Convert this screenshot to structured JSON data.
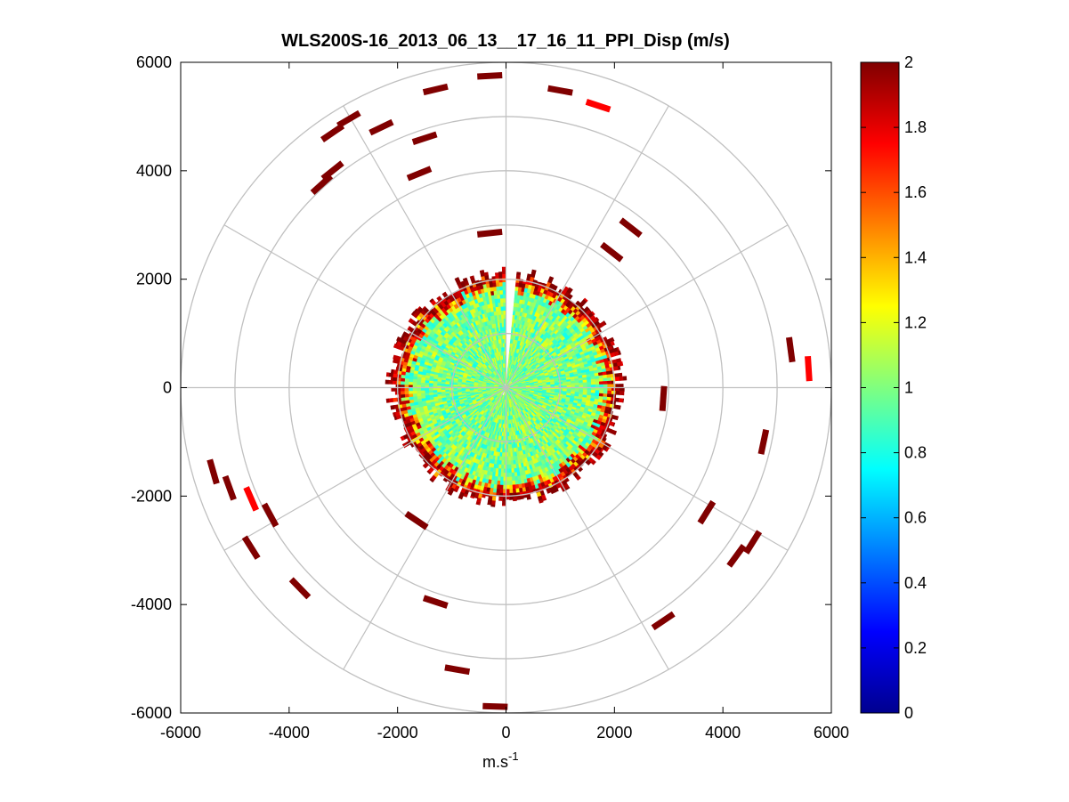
{
  "chart_data": {
    "type": "heatmap",
    "subtype": "polar-ppi-scan",
    "title": "WLS200S-16_2013_06_13__17_16_11_PPI_Disp (m/s)",
    "xlabel": "m.s",
    "xlabel_superscript": "-1",
    "ylabel": "",
    "xlim": [
      -6000,
      6000
    ],
    "ylim": [
      -6000,
      6000
    ],
    "x_ticks": [
      "-6000",
      "-4000",
      "-2000",
      "0",
      "2000",
      "4000",
      "6000"
    ],
    "y_ticks": [
      "6000",
      "4000",
      "2000",
      "0",
      "-2000",
      "-4000",
      "-6000"
    ],
    "polar_grid": {
      "range_rings": [
        1000,
        2000,
        3000,
        4000,
        5000,
        6000
      ],
      "radial_spokes_deg": [
        0,
        30,
        60,
        90,
        120,
        150,
        180,
        210,
        240,
        270,
        300,
        330
      ],
      "grid": true
    },
    "colorbar": {
      "colormap": "jet",
      "clim": [
        0,
        2
      ],
      "ticks": [
        "0",
        "0.2",
        "0.4",
        "0.6",
        "0.8",
        "1",
        "1.2",
        "1.4",
        "1.6",
        "1.8",
        "2"
      ]
    },
    "data_summary": {
      "dense_region_radius_m": 2100,
      "dense_region_typical_value": 1.0,
      "edge_value": 2.0,
      "scattered_far_returns": [
        {
          "x": -300,
          "y": 5750,
          "v": 2.0
        },
        {
          "x": -1300,
          "y": 5500,
          "v": 2.0
        },
        {
          "x": 1000,
          "y": 5480,
          "v": 2.0
        },
        {
          "x": 1700,
          "y": 5200,
          "v": 1.75
        },
        {
          "x": -2900,
          "y": 4950,
          "v": 2.0
        },
        {
          "x": -3200,
          "y": 4700,
          "v": 2.0
        },
        {
          "x": -2300,
          "y": 4800,
          "v": 2.0
        },
        {
          "x": -1500,
          "y": 4600,
          "v": 2.0
        },
        {
          "x": -3200,
          "y": 4000,
          "v": 2.0
        },
        {
          "x": -3400,
          "y": 3750,
          "v": 2.0
        },
        {
          "x": -1600,
          "y": 3950,
          "v": 2.0
        },
        {
          "x": -300,
          "y": 2850,
          "v": 2.0
        },
        {
          "x": 2300,
          "y": 2950,
          "v": 2.0
        },
        {
          "x": 1950,
          "y": 2500,
          "v": 2.0
        },
        {
          "x": 5250,
          "y": 700,
          "v": 2.0
        },
        {
          "x": 5580,
          "y": 350,
          "v": 1.75
        },
        {
          "x": 2900,
          "y": -200,
          "v": 2.0
        },
        {
          "x": 4750,
          "y": -1000,
          "v": 2.0
        },
        {
          "x": -5400,
          "y": -1550,
          "v": 2.0
        },
        {
          "x": -5100,
          "y": -1850,
          "v": 2.0
        },
        {
          "x": -4700,
          "y": -2050,
          "v": 1.75
        },
        {
          "x": -4350,
          "y": -2350,
          "v": 2.0
        },
        {
          "x": -4700,
          "y": -2950,
          "v": 2.0
        },
        {
          "x": -3800,
          "y": -3700,
          "v": 2.0
        },
        {
          "x": -1650,
          "y": -2450,
          "v": 2.0
        },
        {
          "x": 3700,
          "y": -2300,
          "v": 2.0
        },
        {
          "x": 4250,
          "y": -3100,
          "v": 2.0
        },
        {
          "x": 4550,
          "y": -2850,
          "v": 2.0
        },
        {
          "x": 2900,
          "y": -4300,
          "v": 2.0
        },
        {
          "x": -1300,
          "y": -3950,
          "v": 2.0
        },
        {
          "x": -900,
          "y": -5200,
          "v": 2.0
        },
        {
          "x": -200,
          "y": -5880,
          "v": 2.0
        }
      ]
    }
  },
  "colors": {
    "grid": "#c0c0c0",
    "axes": "#000000",
    "background": "#ffffff"
  }
}
